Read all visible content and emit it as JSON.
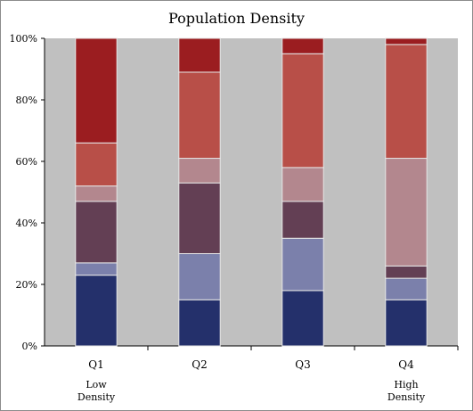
{
  "chart_data": {
    "type": "bar",
    "stacked": true,
    "normalized": true,
    "title": "Population Density",
    "categories": [
      "Q1",
      "Q2",
      "Q3",
      "Q4"
    ],
    "category_sublabels": [
      "Low\nDensity",
      "",
      "",
      "High\nDensity"
    ],
    "y_ticks": [
      "0%",
      "20%",
      "40%",
      "60%",
      "80%",
      "100%"
    ],
    "ylim": [
      0,
      100
    ],
    "grid": false,
    "legend": "none",
    "plot_background": "#c0c0c0",
    "series": [
      {
        "color": "#24306b",
        "values": [
          23,
          15,
          18,
          15
        ]
      },
      {
        "color": "#7b80ab",
        "values": [
          4,
          15,
          17,
          7
        ]
      },
      {
        "color": "#633f54",
        "values": [
          20,
          23,
          12,
          4
        ]
      },
      {
        "color": "#b3878e",
        "values": [
          5,
          8,
          11,
          35
        ]
      },
      {
        "color": "#b84f48",
        "values": [
          14,
          28,
          37,
          37
        ]
      },
      {
        "color": "#9b1d20",
        "values": [
          34,
          11,
          5,
          2
        ]
      }
    ]
  }
}
